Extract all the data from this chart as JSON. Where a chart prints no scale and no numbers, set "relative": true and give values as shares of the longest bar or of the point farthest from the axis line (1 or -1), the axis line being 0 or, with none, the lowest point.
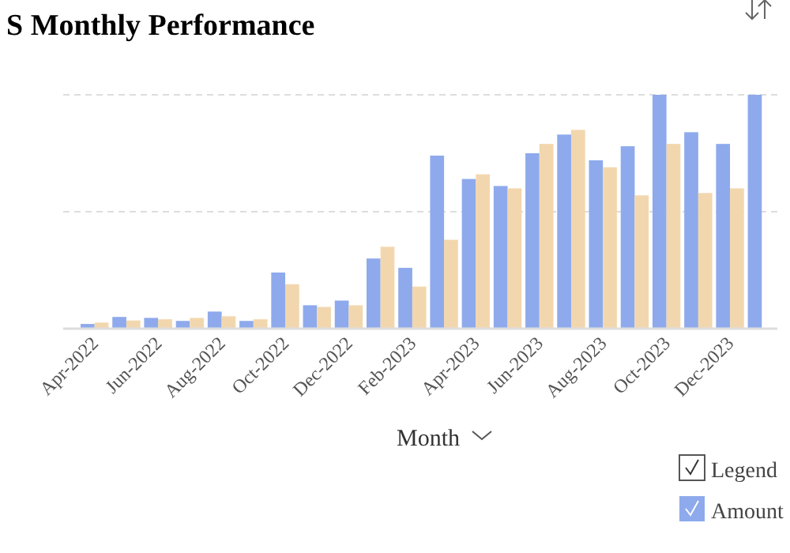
{
  "chart_data": {
    "type": "bar",
    "title": "S Monthly Performance",
    "xlabel": "Month",
    "legend_title": "Legend",
    "relative": true,
    "legend": "bottom right",
    "ref_lines": [
      {
        "axis": "y",
        "value": 0.5,
        "color": "#dddddd",
        "line_style": "dashed"
      },
      {
        "axis": "y",
        "value": 1,
        "color": "#dddddd",
        "line_style": "dashed"
      }
    ],
    "categories": [
      "Apr-2022",
      null,
      "Jun-2022",
      null,
      "Aug-2022",
      null,
      "Oct-2022",
      null,
      "Dec-2022",
      null,
      "Feb-2023",
      null,
      "Apr-2023",
      null,
      "Jun-2023",
      null,
      "Aug-2023",
      null,
      "Oct-2023",
      null,
      "Dec-2023",
      null
    ],
    "series": [
      {
        "name": "Amount",
        "color": "#8eaaec",
        "values": [
          0.02,
          0.05,
          0.046,
          0.033,
          0.073,
          0.033,
          0.24,
          0.1,
          0.12,
          0.3,
          0.26,
          0.74,
          0.64,
          0.61,
          0.75,
          0.83,
          0.72,
          0.78,
          1.0,
          0.84,
          0.79,
          1.0
        ]
      },
      {
        "color": "#f2d7ae",
        "values": [
          0.026,
          0.035,
          0.04,
          0.046,
          0.053,
          0.04,
          0.19,
          0.093,
          0.1,
          0.35,
          0.18,
          0.38,
          0.66,
          0.6,
          0.79,
          0.85,
          0.69,
          0.57,
          0.79,
          0.58,
          0.6,
          null
        ]
      }
    ]
  }
}
